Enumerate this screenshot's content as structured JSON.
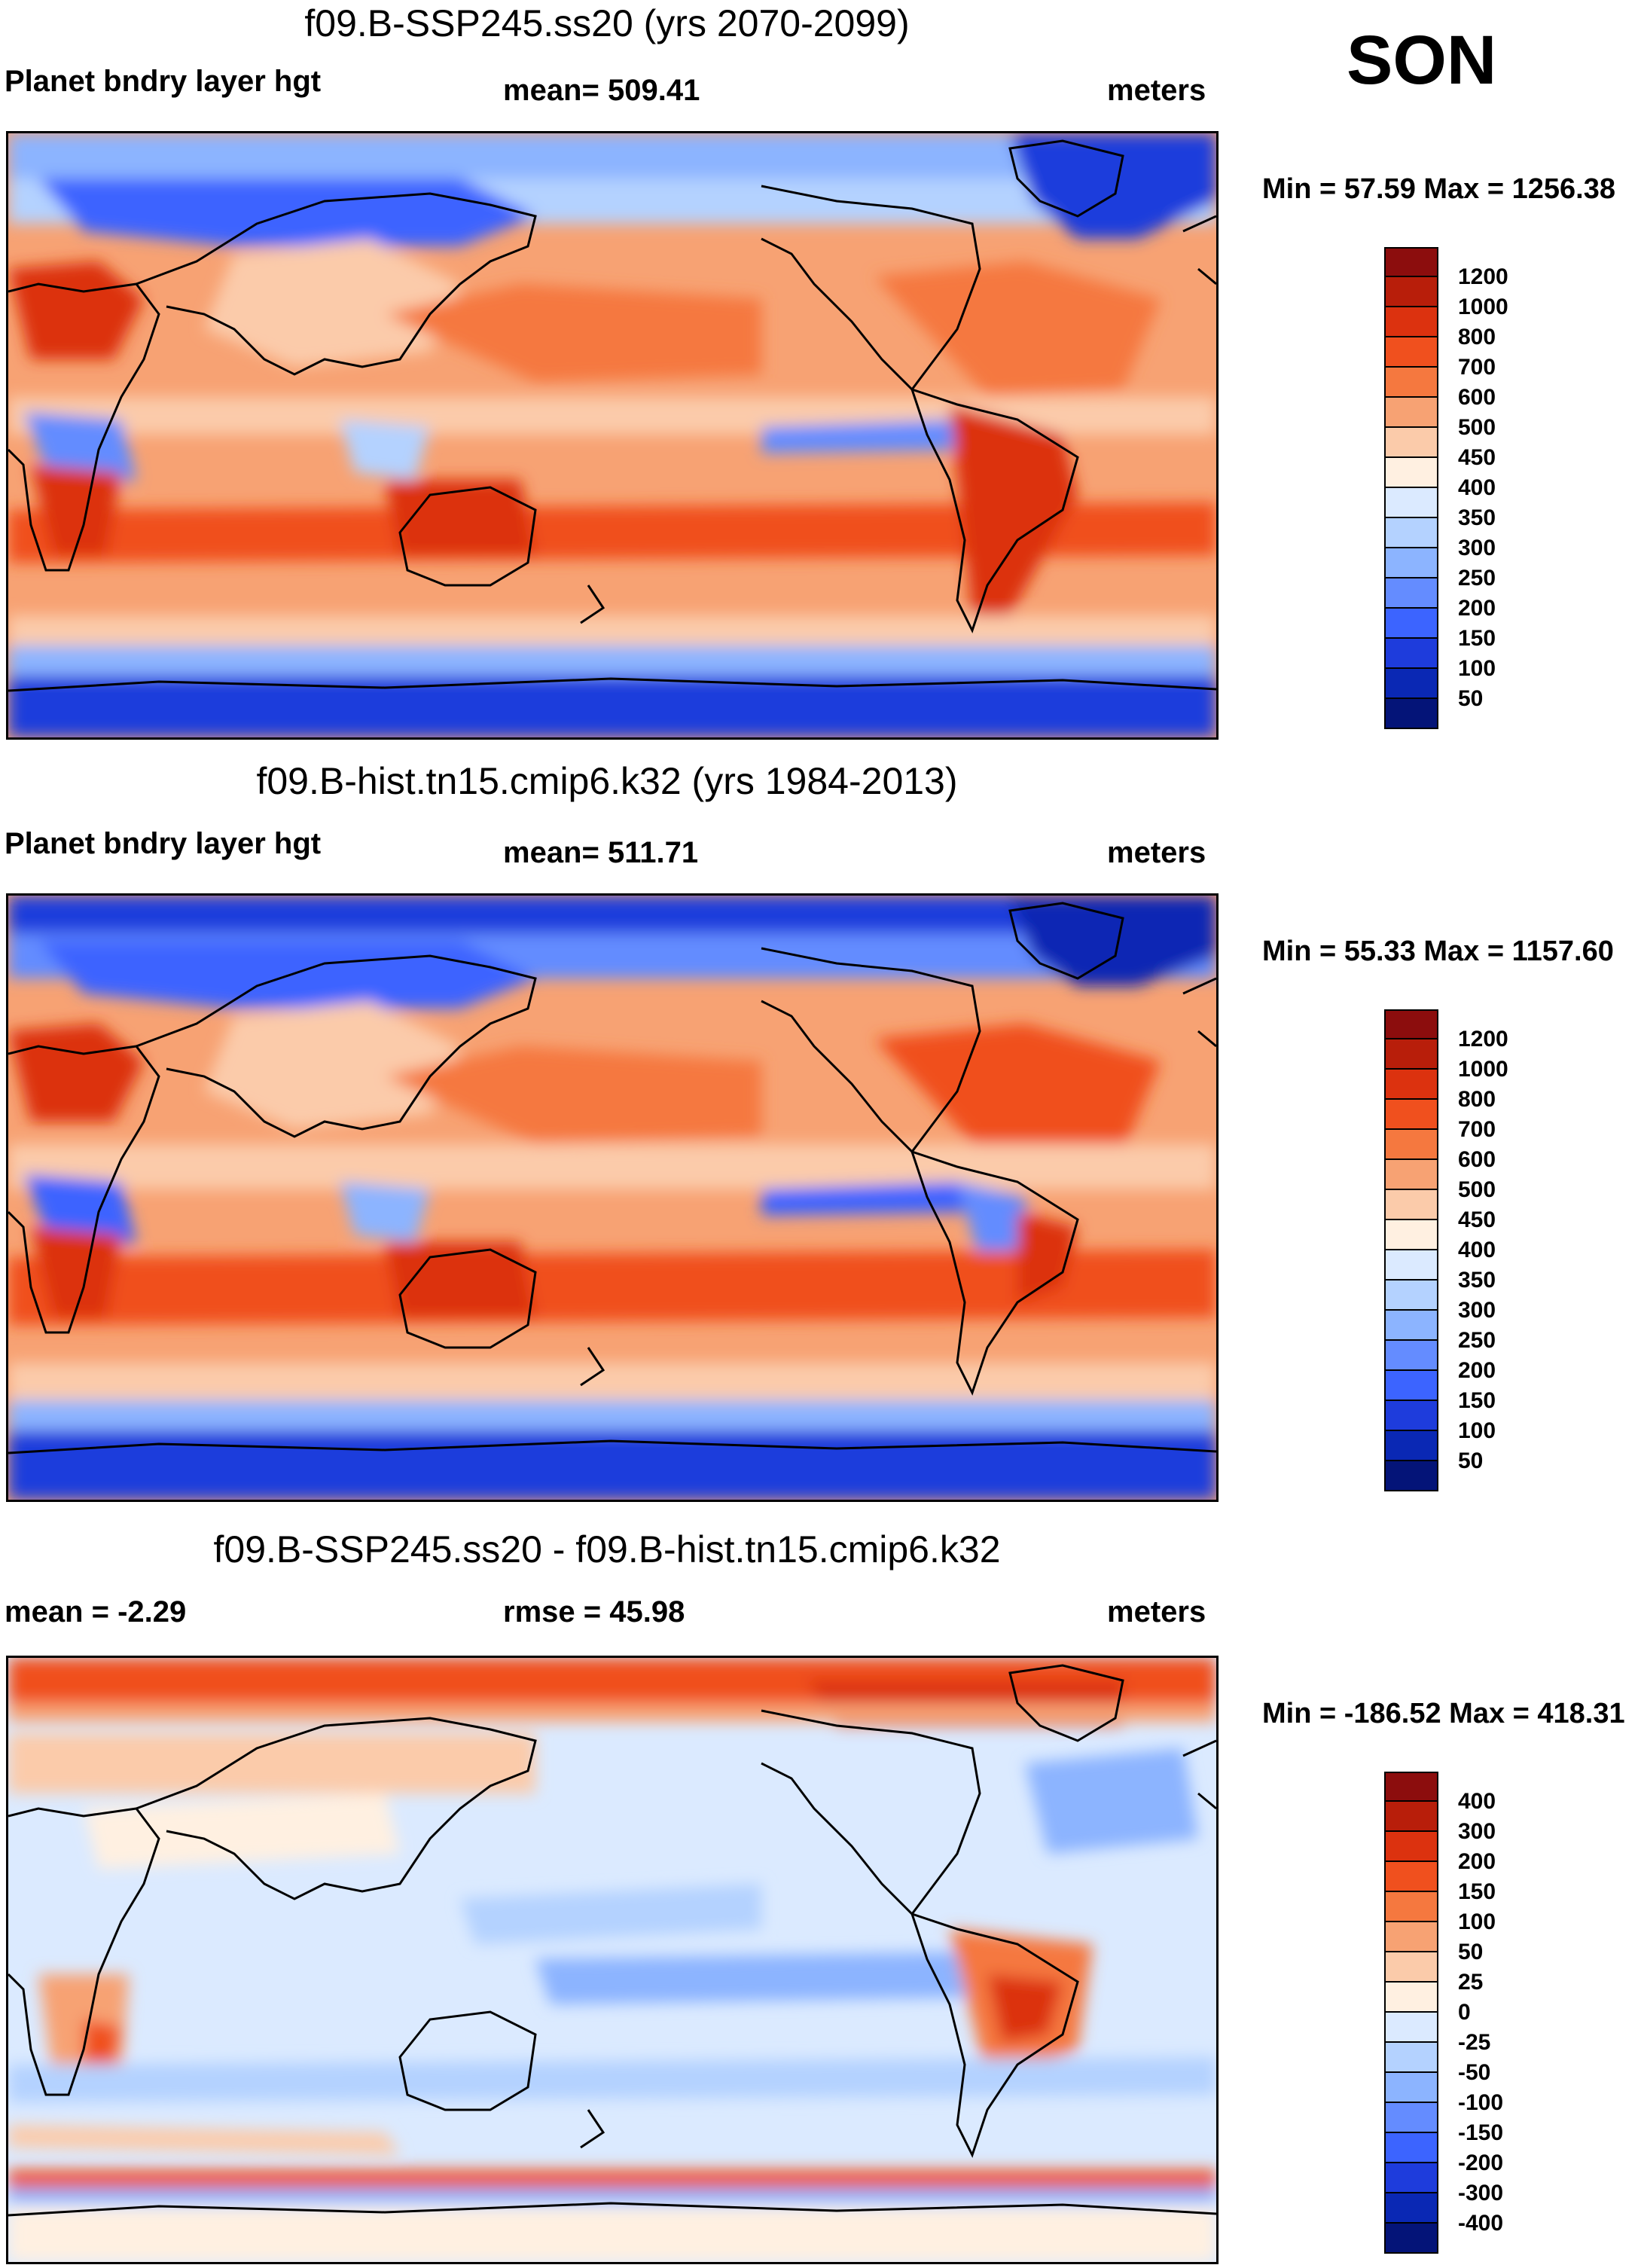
{
  "season": "SON",
  "panels": [
    {
      "title": "f09.B-SSP245.ss20 (yrs 2070-2099)",
      "left_label": "Planet bndry layer hgt",
      "center_label": "mean= 509.41",
      "right_label": "meters",
      "minmax": "Min =  57.59 Max = 1256.38",
      "colorbar": {
        "levels": [
          "1200",
          "1000",
          "800",
          "700",
          "600",
          "500",
          "450",
          "400",
          "350",
          "300",
          "250",
          "200",
          "150",
          "100",
          "50"
        ],
        "colors": [
          "#8c0d0d",
          "#b81e0a",
          "#dc320f",
          "#f0501e",
          "#f5783f",
          "#f7a273",
          "#fbcbaa",
          "#fff0e1",
          "#dbeaff",
          "#b4d2ff",
          "#8cb4ff",
          "#648cff",
          "#3c64ff",
          "#1e3cdc",
          "#0a28b4",
          "#041478"
        ]
      }
    },
    {
      "title": "f09.B-hist.tn15.cmip6.k32 (yrs 1984-2013)",
      "left_label": "Planet bndry layer hgt",
      "center_label": "mean= 511.71",
      "right_label": "meters",
      "minmax": "Min =  55.33 Max = 1157.60",
      "colorbar": {
        "levels": [
          "1200",
          "1000",
          "800",
          "700",
          "600",
          "500",
          "450",
          "400",
          "350",
          "300",
          "250",
          "200",
          "150",
          "100",
          "50"
        ],
        "colors": [
          "#8c0d0d",
          "#b81e0a",
          "#dc320f",
          "#f0501e",
          "#f5783f",
          "#f7a273",
          "#fbcbaa",
          "#fff0e1",
          "#dbeaff",
          "#b4d2ff",
          "#8cb4ff",
          "#648cff",
          "#3c64ff",
          "#1e3cdc",
          "#0a28b4",
          "#041478"
        ]
      }
    },
    {
      "title": "f09.B-SSP245.ss20 - f09.B-hist.tn15.cmip6.k32",
      "left_label": "mean =  -2.29",
      "center_label": "rmse =  45.98",
      "right_label": "meters",
      "minmax": "Min = -186.52 Max = 418.31",
      "colorbar": {
        "levels": [
          "400",
          "300",
          "200",
          "150",
          "100",
          "50",
          "25",
          "0",
          "-25",
          "-50",
          "-100",
          "-150",
          "-200",
          "-300",
          "-400"
        ],
        "colors": [
          "#8c0d0d",
          "#b81e0a",
          "#dc320f",
          "#f0501e",
          "#f5783f",
          "#f7a273",
          "#fbcbaa",
          "#fff0e1",
          "#dbeaff",
          "#b4d2ff",
          "#8cb4ff",
          "#648cff",
          "#3c64ff",
          "#1e3cdc",
          "#0a28b4",
          "#041478"
        ]
      }
    }
  ]
}
